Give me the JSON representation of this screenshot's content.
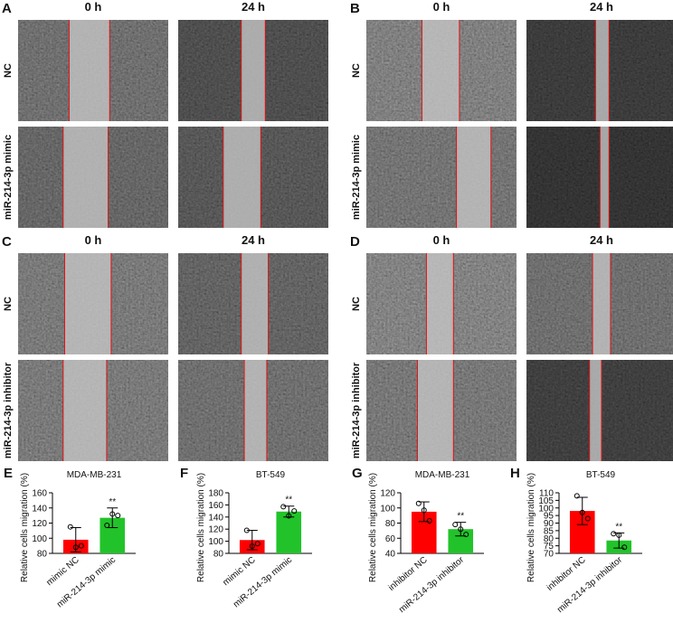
{
  "image_panels": [
    {
      "label": "A",
      "columns": [
        "0 h",
        "24 h"
      ],
      "rows": [
        "NC",
        "miR-214-3p mimic"
      ]
    },
    {
      "label": "B",
      "columns": [
        "0 h",
        "24 h"
      ],
      "rows": [
        "NC",
        "miR-214-3p mimic"
      ]
    },
    {
      "label": "C",
      "columns": [
        "0 h",
        "24 h"
      ],
      "rows": [
        "NC",
        "miR-214-3p inhibitor"
      ]
    },
    {
      "label": "D",
      "columns": [
        "0 h",
        "24 h"
      ],
      "rows": [
        "NC",
        "miR-214-3p inhibitor"
      ]
    }
  ],
  "chart_data": [
    {
      "type": "bar",
      "label": "E",
      "title": "MDA-MB-231",
      "y_label": "Relative cells migration (%)",
      "categories": [
        "mimic NC",
        "miR-214-3p mimic"
      ],
      "values": [
        98,
        127
      ],
      "errors": [
        16,
        13
      ],
      "points": [
        [
          115,
          88,
          90
        ],
        [
          117,
          132,
          130
        ]
      ],
      "colors": [
        "#ff0000",
        "#22c32a"
      ],
      "ylim": [
        80,
        160
      ],
      "yticks": [
        80,
        100,
        120,
        140,
        160
      ],
      "annotation": "**"
    },
    {
      "type": "bar",
      "label": "F",
      "title": "BT-549",
      "y_label": "Relative cells migration (%)",
      "categories": [
        "mimic NC",
        "miR-214-3p mimic"
      ],
      "values": [
        102,
        149
      ],
      "errors": [
        16,
        9
      ],
      "points": [
        [
          118,
          92,
          96
        ],
        [
          157,
          142,
          150
        ]
      ],
      "colors": [
        "#ff0000",
        "#22c32a"
      ],
      "ylim": [
        80,
        180
      ],
      "yticks": [
        80,
        100,
        120,
        140,
        160,
        180
      ],
      "annotation": "**"
    },
    {
      "type": "bar",
      "label": "G",
      "title": "MDA-MB-231",
      "y_label": "Relative cells migration (%)",
      "categories": [
        "inhibitor NC",
        "miR-214-3p inhibitor"
      ],
      "values": [
        95,
        72
      ],
      "errors": [
        13,
        9
      ],
      "points": [
        [
          106,
          97,
          83
        ],
        [
          78,
          72,
          65
        ]
      ],
      "colors": [
        "#ff0000",
        "#22c32a"
      ],
      "ylim": [
        40,
        120
      ],
      "yticks": [
        40,
        60,
        80,
        100,
        120
      ],
      "annotation": "**"
    },
    {
      "type": "bar",
      "label": "H",
      "title": "BT-549",
      "y_label": "Relative cells migration (%)",
      "categories": [
        "inhibitor NC",
        "miR-214-3p inhibitor"
      ],
      "values": [
        98,
        78.5
      ],
      "errors": [
        9,
        5
      ],
      "points": [
        [
          108,
          97,
          93
        ],
        [
          83,
          82,
          74
        ]
      ],
      "colors": [
        "#ff0000",
        "#22c32a"
      ],
      "ylim": [
        70,
        110
      ],
      "yticks": [
        70,
        75,
        80,
        85,
        90,
        95,
        100,
        105,
        110
      ],
      "annotation": "**"
    }
  ]
}
